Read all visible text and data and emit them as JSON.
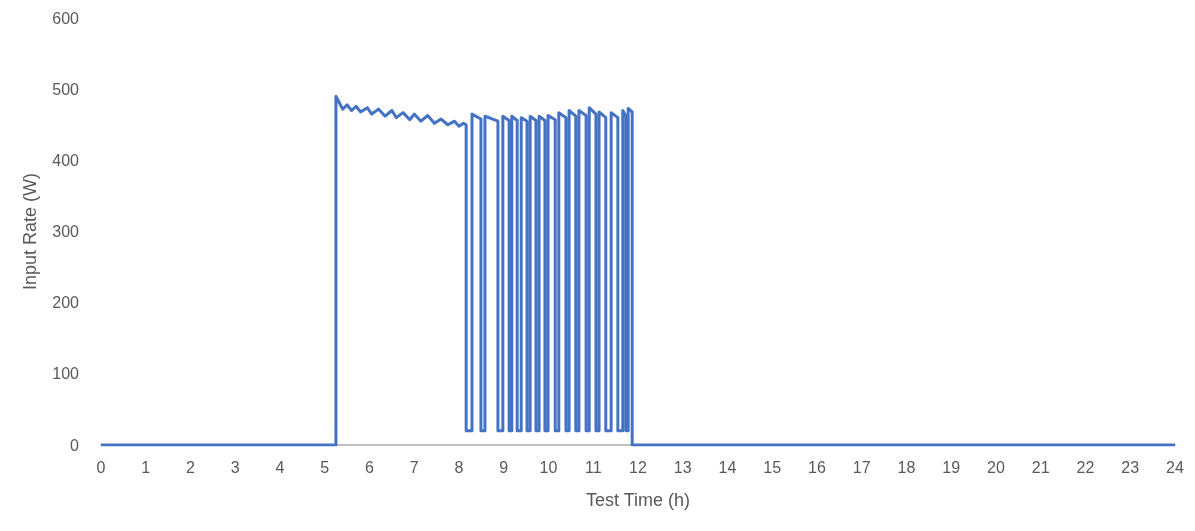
{
  "chart_data": {
    "type": "line",
    "xlabel": "Test Time (h)",
    "ylabel": "Input Rate (W)",
    "xlim": [
      0,
      24
    ],
    "xticks": [
      0,
      1,
      2,
      3,
      4,
      5,
      6,
      7,
      8,
      9,
      10,
      11,
      12,
      13,
      14,
      15,
      16,
      17,
      18,
      19,
      20,
      21,
      22,
      23,
      24
    ],
    "ylim": [
      0,
      600
    ],
    "yticks": [
      0,
      100,
      200,
      300,
      400,
      500,
      600
    ],
    "grid": false,
    "marker": "none",
    "line_style": "solid",
    "series": [
      {
        "color": "#4472c4",
        "x": [
          0,
          5.25,
          5.25,
          5.3,
          5.4,
          5.5,
          5.6,
          5.7,
          5.8,
          5.95,
          6.05,
          6.2,
          6.35,
          6.5,
          6.6,
          6.75,
          6.9,
          7.0,
          7.15,
          7.3,
          7.45,
          7.6,
          7.75,
          7.9,
          8.0,
          8.1,
          8.16,
          8.16,
          8.29,
          8.29,
          8.49,
          8.49,
          8.58,
          8.58,
          8.87,
          8.87,
          8.98,
          8.98,
          9.12,
          9.12,
          9.18,
          9.18,
          9.3,
          9.3,
          9.39,
          9.39,
          9.52,
          9.52,
          9.59,
          9.59,
          9.72,
          9.72,
          9.79,
          9.79,
          9.92,
          9.92,
          9.99,
          9.99,
          10.15,
          10.15,
          10.23,
          10.23,
          10.39,
          10.39,
          10.46,
          10.46,
          10.61,
          10.61,
          10.68,
          10.68,
          10.84,
          10.84,
          10.91,
          10.91,
          11.06,
          11.06,
          11.13,
          11.13,
          11.28,
          11.28,
          11.4,
          11.4,
          11.55,
          11.55,
          11.66,
          11.66,
          11.73,
          11.73,
          11.78,
          11.78,
          11.87,
          11.87,
          24
        ],
        "values": [
          0,
          0,
          490,
          484,
          472,
          478,
          470,
          476,
          468,
          474,
          465,
          472,
          462,
          470,
          460,
          467,
          457,
          465,
          455,
          463,
          452,
          458,
          450,
          455,
          448,
          452,
          450,
          20,
          20,
          465,
          458,
          20,
          20,
          462,
          455,
          20,
          20,
          462,
          456,
          20,
          20,
          462,
          456,
          20,
          20,
          460,
          455,
          20,
          20,
          462,
          456,
          20,
          20,
          462,
          456,
          20,
          20,
          463,
          457,
          20,
          20,
          467,
          460,
          20,
          20,
          470,
          462,
          20,
          20,
          470,
          463,
          20,
          20,
          474,
          465,
          20,
          20,
          468,
          460,
          20,
          20,
          467,
          460,
          20,
          20,
          470,
          462,
          20,
          20,
          473,
          468,
          0,
          0
        ]
      }
    ]
  }
}
